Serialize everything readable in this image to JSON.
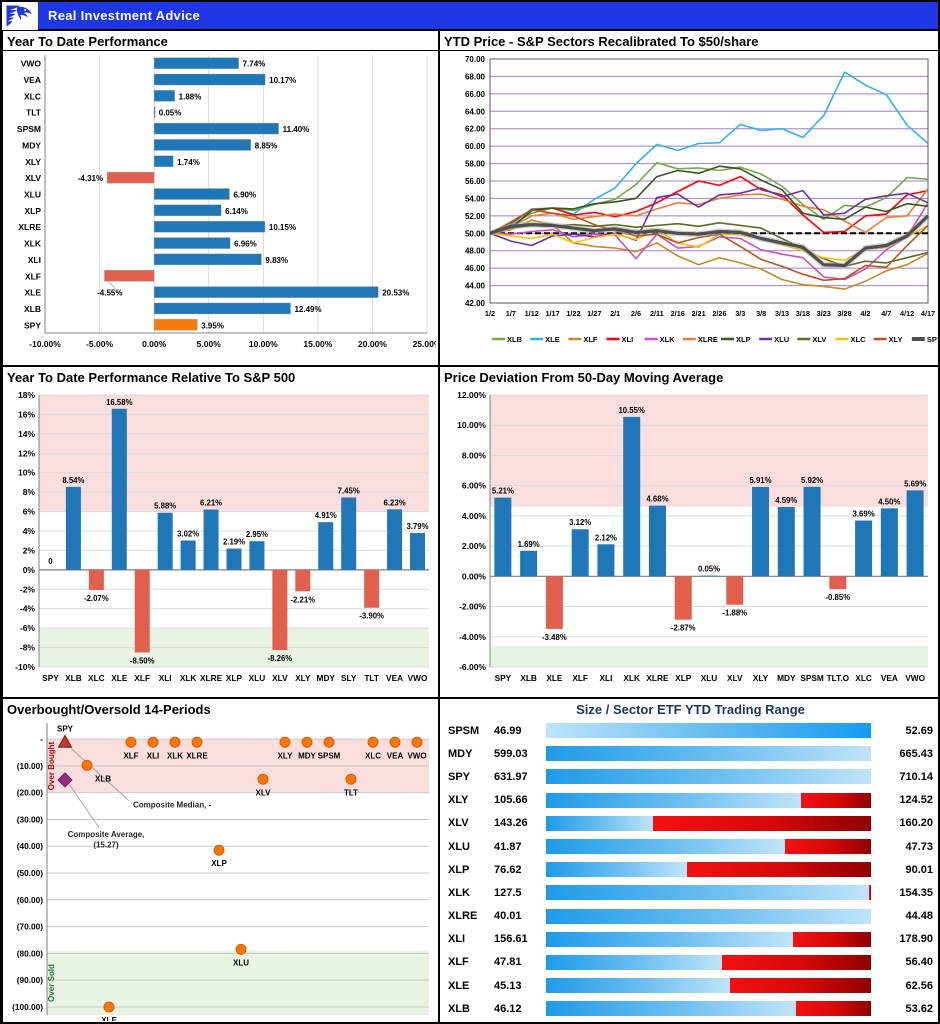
{
  "header": {
    "brand": "Real Investment Advice"
  },
  "colors": {
    "header_blue": "#1F36E4",
    "bar_blue": "#1F77B8",
    "bar_red": "#E0604D",
    "bar_orange": "#F57B0C",
    "band_pink": "#F9DEDD",
    "band_green": "#E9F3E4",
    "grid_gray": "#D9D9D9",
    "grid_purple": "#A97BC9",
    "point_orange": "#F5770A",
    "range_title_navy": "#17375E"
  },
  "chart_data": [
    {
      "id": "ytd_performance",
      "type": "bar",
      "orientation": "horizontal",
      "title": "Year To Date Performance",
      "categories": [
        "VWO",
        "VEA",
        "XLC",
        "TLT",
        "SPSM",
        "MDY",
        "XLY",
        "XLV",
        "XLU",
        "XLP",
        "XLRE",
        "XLK",
        "XLI",
        "XLF",
        "XLE",
        "XLB",
        "SPY"
      ],
      "values": [
        7.74,
        10.17,
        1.88,
        0.05,
        11.4,
        8.85,
        1.74,
        -4.31,
        6.9,
        6.14,
        10.15,
        6.96,
        9.83,
        -4.55,
        20.53,
        12.49,
        3.95
      ],
      "labels": [
        "7.74%",
        "10.17%",
        "1.88%",
        "0.05%",
        "11.40%",
        "8.85%",
        "1.74%",
        "-4.31%",
        "6.90%",
        "6.14%",
        "10.15%",
        "6.96%",
        "9.83%",
        "-4.55%",
        "20.53%",
        "12.49%",
        "3.95%"
      ],
      "xlim": [
        -10,
        25
      ],
      "xticks": [
        "-10.00%",
        "-5.00%",
        "0.00%",
        "5.00%",
        "10.00%",
        "15.00%",
        "20.00%",
        "25.00%"
      ],
      "grid": true
    },
    {
      "id": "ytd_price_lines",
      "type": "line",
      "title": "YTD Price - S&P Sectors Recalibrated To $50/share",
      "x": [
        "1/2",
        "1/7",
        "1/12",
        "1/17",
        "1/22",
        "1/27",
        "2/1",
        "2/6",
        "2/11",
        "2/16",
        "2/21",
        "2/26",
        "3/3",
        "3/8",
        "3/13",
        "3/18",
        "3/23",
        "3/28",
        "4/2",
        "4/7",
        "4/12",
        "4/17"
      ],
      "ylim": [
        42,
        70
      ],
      "yticks": [
        "70.00",
        "68.00",
        "66.00",
        "64.00",
        "62.00",
        "60.00",
        "58.00",
        "56.00",
        "54.00",
        "52.00",
        "50.00",
        "48.00",
        "46.00",
        "44.00",
        "42.00"
      ],
      "baseline": 50,
      "legend_position": "bottom",
      "series": [
        {
          "name": "XLB",
          "color": "#70AD47",
          "values": [
            50,
            50.9,
            52.3,
            52.9,
            52.6,
            53.3,
            53.9,
            55.6,
            58.1,
            57.4,
            57.5,
            57.2,
            57.6,
            56.8,
            55.4,
            53.3,
            51.6,
            53.2,
            53.0,
            54.1,
            56.4,
            56.2
          ]
        },
        {
          "name": "XLE",
          "color": "#2FB4E9",
          "values": [
            50,
            51.0,
            52.8,
            52.9,
            52.2,
            53.9,
            55.2,
            58.0,
            60.2,
            59.5,
            60.3,
            60.4,
            62.5,
            61.8,
            62.0,
            61.0,
            63.5,
            68.5,
            67.0,
            65.9,
            62.4,
            60.3
          ]
        },
        {
          "name": "XLF",
          "color": "#C78A22",
          "values": [
            50,
            50.4,
            51.5,
            51.0,
            48.9,
            48.5,
            48.3,
            47.9,
            48.9,
            47.4,
            46.4,
            47.2,
            46.6,
            45.9,
            44.7,
            44.1,
            43.9,
            43.6,
            44.5,
            45.7,
            46.4,
            47.7
          ]
        },
        {
          "name": "XLI",
          "color": "#FF0000",
          "values": [
            50,
            51.2,
            52.7,
            52.9,
            52.1,
            52.4,
            51.9,
            52.5,
            53.5,
            54.8,
            56.0,
            55.5,
            56.5,
            55.0,
            54.4,
            52.1,
            50.1,
            50.2,
            52.0,
            52.2,
            54.4,
            54.9
          ]
        },
        {
          "name": "XLK",
          "color": "#CE4FC0",
          "values": [
            50,
            49.9,
            50.2,
            50.4,
            49.6,
            49.9,
            49.8,
            47.1,
            49.9,
            48.3,
            48.5,
            49.6,
            49.4,
            48.1,
            47.6,
            47.2,
            45.0,
            44.7,
            45.9,
            48.1,
            49.6,
            53.5
          ]
        },
        {
          "name": "XLRE",
          "color": "#ED7D31",
          "values": [
            50,
            50.7,
            52.0,
            52.3,
            51.6,
            51.9,
            52.2,
            52.0,
            52.8,
            53.5,
            53.3,
            54.0,
            54.4,
            54.5,
            53.9,
            53.1,
            52.7,
            51.4,
            50.1,
            51.8,
            52.0,
            55.1
          ]
        },
        {
          "name": "XLP",
          "color": "#375623",
          "values": [
            50,
            50.6,
            52.6,
            52.9,
            52.8,
            53.4,
            53.6,
            54.0,
            56.5,
            57.2,
            56.9,
            57.7,
            57.4,
            56.1,
            55.0,
            52.3,
            51.8,
            51.6,
            53.0,
            52.5,
            53.4,
            53.1
          ]
        },
        {
          "name": "XLU",
          "color": "#7030A0",
          "values": [
            50,
            49.1,
            48.6,
            49.7,
            49.9,
            49.6,
            50.0,
            49.2,
            54.1,
            54.5,
            53.0,
            54.4,
            54.6,
            55.2,
            54.2,
            54.9,
            52.1,
            52.3,
            53.9,
            54.3,
            54.6,
            53.5
          ]
        },
        {
          "name": "XLV",
          "color": "#5F6B28",
          "values": [
            50,
            50.6,
            50.9,
            50.8,
            51.0,
            50.8,
            51.0,
            50.7,
            50.9,
            51.1,
            50.8,
            51.2,
            50.9,
            50.6,
            49.4,
            48.2,
            47.1,
            46.2,
            46.8,
            46.6,
            47.2,
            47.8
          ]
        },
        {
          "name": "XLC",
          "color": "#FFC000",
          "values": [
            50,
            49.7,
            49.4,
            49.9,
            48.9,
            49.5,
            49.9,
            49.3,
            50.4,
            48.9,
            48.4,
            49.9,
            49.8,
            49.4,
            48.7,
            48.0,
            47.2,
            46.9,
            48.2,
            48.4,
            49.6,
            50.9
          ]
        },
        {
          "name": "XLY",
          "color": "#B4561B",
          "values": [
            50,
            51.3,
            52.7,
            52.3,
            52.0,
            51.0,
            50.3,
            49.7,
            49.9,
            48.9,
            49.5,
            49.9,
            48.5,
            47.0,
            46.2,
            45.3,
            44.6,
            44.8,
            46.3,
            46.1,
            48.6,
            50.9
          ]
        },
        {
          "name": "SPY",
          "color": "#4F4F4F",
          "thick": true,
          "values": [
            50,
            50.8,
            51.0,
            50.9,
            50.6,
            50.3,
            50.5,
            50.1,
            50.3,
            50.0,
            49.9,
            50.2,
            50.1,
            49.4,
            48.9,
            48.4,
            46.4,
            46.3,
            48.3,
            48.6,
            49.7,
            52.0
          ]
        }
      ]
    },
    {
      "id": "ytd_relative",
      "type": "bar",
      "orientation": "vertical",
      "title": "Year To Date Performance Relative To S&P 500",
      "categories": [
        "SPY",
        "XLB",
        "XLC",
        "XLE",
        "XLF",
        "XLI",
        "XLK",
        "XLRE",
        "XLP",
        "XLU",
        "XLV",
        "XLY",
        "MDY",
        "SLY",
        "TLT",
        "VEA",
        "VWO"
      ],
      "values": [
        0,
        8.54,
        -2.07,
        16.58,
        -8.5,
        5.88,
        3.02,
        6.21,
        2.19,
        2.95,
        -8.26,
        -2.21,
        4.91,
        7.45,
        -3.9,
        6.23,
        3.79
      ],
      "labels": [
        "0",
        "8.54%",
        "-2.07%",
        "16.58%",
        "-8.50%",
        "5.88%",
        "3.02%",
        "6.21%",
        "2.19%",
        "2.95%",
        "-8.26%",
        "-2.21%",
        "4.91%",
        "7.45%",
        "-3.90%",
        "6.23%",
        "3.79%"
      ],
      "ylim": [
        -10,
        18
      ],
      "ystep": 2,
      "yticks": [
        "18%",
        "16%",
        "14%",
        "12%",
        "10%",
        "8%",
        "6%",
        "4%",
        "2%",
        "0%",
        "-2%",
        "-4%",
        "-6%",
        "-8%",
        "-10%"
      ],
      "bands": [
        {
          "from": 6,
          "to": 18,
          "color": "#F9DEDD"
        },
        {
          "from": -10,
          "to": -6,
          "color": "#E9F3E4"
        }
      ]
    },
    {
      "id": "deviation_50dma",
      "type": "bar",
      "orientation": "vertical",
      "title": "Price Deviation From 50-Day Moving Average",
      "categories": [
        "SPY",
        "XLB",
        "XLE",
        "XLF",
        "XLI",
        "XLK",
        "XLRE",
        "XLP",
        "XLU",
        "XLV",
        "XLY",
        "MDY",
        "SPSM",
        "TLT.O",
        "XLC",
        "VEA",
        "VWO"
      ],
      "values": [
        5.21,
        1.69,
        -3.48,
        3.12,
        2.12,
        10.55,
        4.68,
        -2.87,
        0.05,
        -1.88,
        5.91,
        4.59,
        5.92,
        -0.85,
        3.69,
        4.5,
        5.69
      ],
      "labels": [
        "5.21%",
        "1.69%",
        "-3.48%",
        "3.12%",
        "2.12%",
        "10.55%",
        "4.68%",
        "-2.87%",
        "0.05%",
        "-1.88%",
        "5.91%",
        "4.59%",
        "5.92%",
        "-0.85%",
        "3.69%",
        "4.50%",
        "5.69%"
      ],
      "ylim": [
        -6,
        12
      ],
      "ystep": 2,
      "yticks": [
        "12.00%",
        "10.00%",
        "8.00%",
        "6.00%",
        "4.00%",
        "2.00%",
        "0.00%",
        "-2.00%",
        "-4.00%",
        "-6.00%"
      ],
      "bands": [
        {
          "from": 4.6,
          "to": 12,
          "color": "#F9DEDD"
        },
        {
          "from": -6,
          "to": -4.6,
          "color": "#E9F3E4"
        }
      ]
    },
    {
      "id": "overbought_oversold",
      "type": "scatter",
      "title": "Overbought/Oversold 14-Periods",
      "categories": [
        "SPY",
        "XLB",
        "XLE",
        "XLF",
        "XLI",
        "XLK",
        "XLRE",
        "XLP",
        "XLU",
        "XLV",
        "XLY",
        "MDY",
        "SPSM",
        "TLT",
        "XLC",
        "VEA",
        "VWO"
      ],
      "values": [
        -1.2,
        -9.8,
        -100.0,
        -1.2,
        -1.2,
        -1.2,
        -1.2,
        -41.5,
        -78.5,
        -15.0,
        -1.2,
        -1.2,
        -1.2,
        -15.0,
        -1.2,
        -1.2,
        -1.2
      ],
      "ylim": [
        6,
        -103
      ],
      "yticks": [
        "-",
        "(10.00)",
        "(20.00)",
        "(30.00)",
        "(40.00)",
        "(50.00)",
        "(60.00)",
        "(70.00)",
        "(80.00)",
        "(90.00)",
        "(100.00)"
      ],
      "bands": [
        {
          "from": 0,
          "to": -20,
          "color": "#F9DEDD"
        },
        {
          "from": -79,
          "to": -103,
          "color": "#E9F3E4"
        }
      ],
      "side_labels": {
        "overbought": "Over Bought",
        "oversold": "Over Sold"
      },
      "annotations": {
        "spy_label": "SPY",
        "median_label": "Composite Median,  -",
        "average_label": "Composite Average,",
        "average_value": "(15.27)",
        "average_numeric": -15.27
      }
    },
    {
      "id": "trading_range",
      "type": "table",
      "title": "Size / Sector ETF YTD Trading Range",
      "rows": [
        {
          "ticker": "SPSM",
          "low": "46.99",
          "high": "52.69",
          "blue_frac": 1.0,
          "reverse": true
        },
        {
          "ticker": "MDY",
          "low": "599.03",
          "high": "665.43",
          "blue_frac": 1.0,
          "reverse": false
        },
        {
          "ticker": "SPY",
          "low": "631.97",
          "high": "710.14",
          "blue_frac": 1.0,
          "reverse": false
        },
        {
          "ticker": "XLY",
          "low": "105.66",
          "high": "124.52",
          "blue_frac": 0.785,
          "reverse": false
        },
        {
          "ticker": "XLV",
          "low": "143.26",
          "high": "160.20",
          "blue_frac": 0.33,
          "reverse": false
        },
        {
          "ticker": "XLU",
          "low": "41.87",
          "high": "47.73",
          "blue_frac": 0.735,
          "reverse": false
        },
        {
          "ticker": "XLP",
          "low": "76.62",
          "high": "90.01",
          "blue_frac": 0.435,
          "reverse": false
        },
        {
          "ticker": "XLK",
          "low": "127.5",
          "high": "154.35",
          "blue_frac": 0.993,
          "reverse": false
        },
        {
          "ticker": "XLRE",
          "low": "40.01",
          "high": "44.48",
          "blue_frac": 1.0,
          "reverse": false
        },
        {
          "ticker": "XLI",
          "low": "156.61",
          "high": "178.90",
          "blue_frac": 0.76,
          "reverse": false
        },
        {
          "ticker": "XLF",
          "low": "47.81",
          "high": "56.40",
          "blue_frac": 0.54,
          "reverse": false
        },
        {
          "ticker": "XLE",
          "low": "45.13",
          "high": "62.56",
          "blue_frac": 0.565,
          "reverse": false
        },
        {
          "ticker": "XLB",
          "low": "46.12",
          "high": "53.62",
          "blue_frac": 0.77,
          "reverse": false
        }
      ]
    }
  ]
}
